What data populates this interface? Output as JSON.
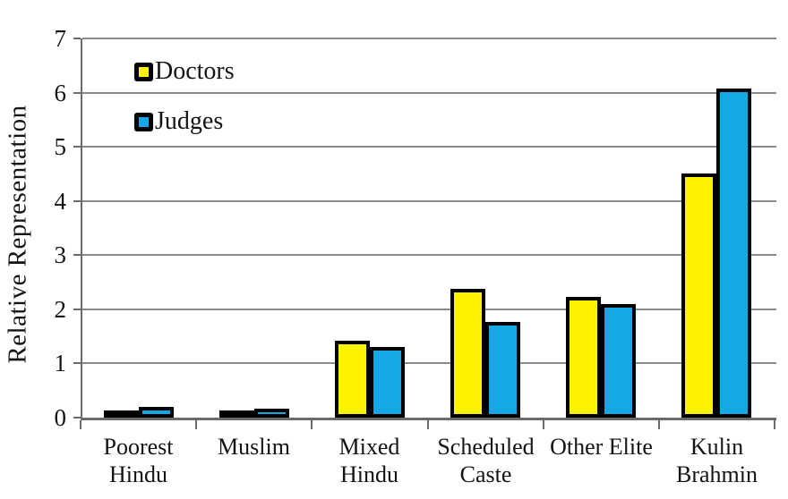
{
  "chart_data": {
    "type": "bar",
    "title": "",
    "ylabel": "Relative Representation",
    "xlabel": "",
    "ylim": [
      0,
      7
    ],
    "yticks": [
      0,
      1,
      2,
      3,
      4,
      5,
      6,
      7
    ],
    "grid": true,
    "legend_position": "top-left-inside",
    "categories": [
      "Poorest Hindu",
      "Muslim",
      "Mixed Hindu",
      "Scheduled Caste",
      "Other Elite",
      "Kulin Brahmin"
    ],
    "category_label_lines": [
      [
        "Poorest",
        "Hindu"
      ],
      [
        "Muslim"
      ],
      [
        "Mixed",
        "Hindu"
      ],
      [
        "Scheduled",
        "Caste"
      ],
      [
        "Other Elite"
      ],
      [
        "Kulin",
        "Brahmin"
      ]
    ],
    "series": [
      {
        "name": "Doctors",
        "color": "#FDF300",
        "values": [
          0.09,
          0.13,
          1.42,
          2.38,
          2.23,
          4.5
        ]
      },
      {
        "name": "Judges",
        "color": "#14A8E7",
        "values": [
          0.2,
          0.16,
          1.3,
          1.77,
          2.09,
          6.08
        ]
      }
    ],
    "colors": {
      "bar_border": "#000000",
      "gridline": "#8A8A8A",
      "axis": "#6B6B6B",
      "text": "#141414",
      "background": "#FFFFFF"
    }
  }
}
